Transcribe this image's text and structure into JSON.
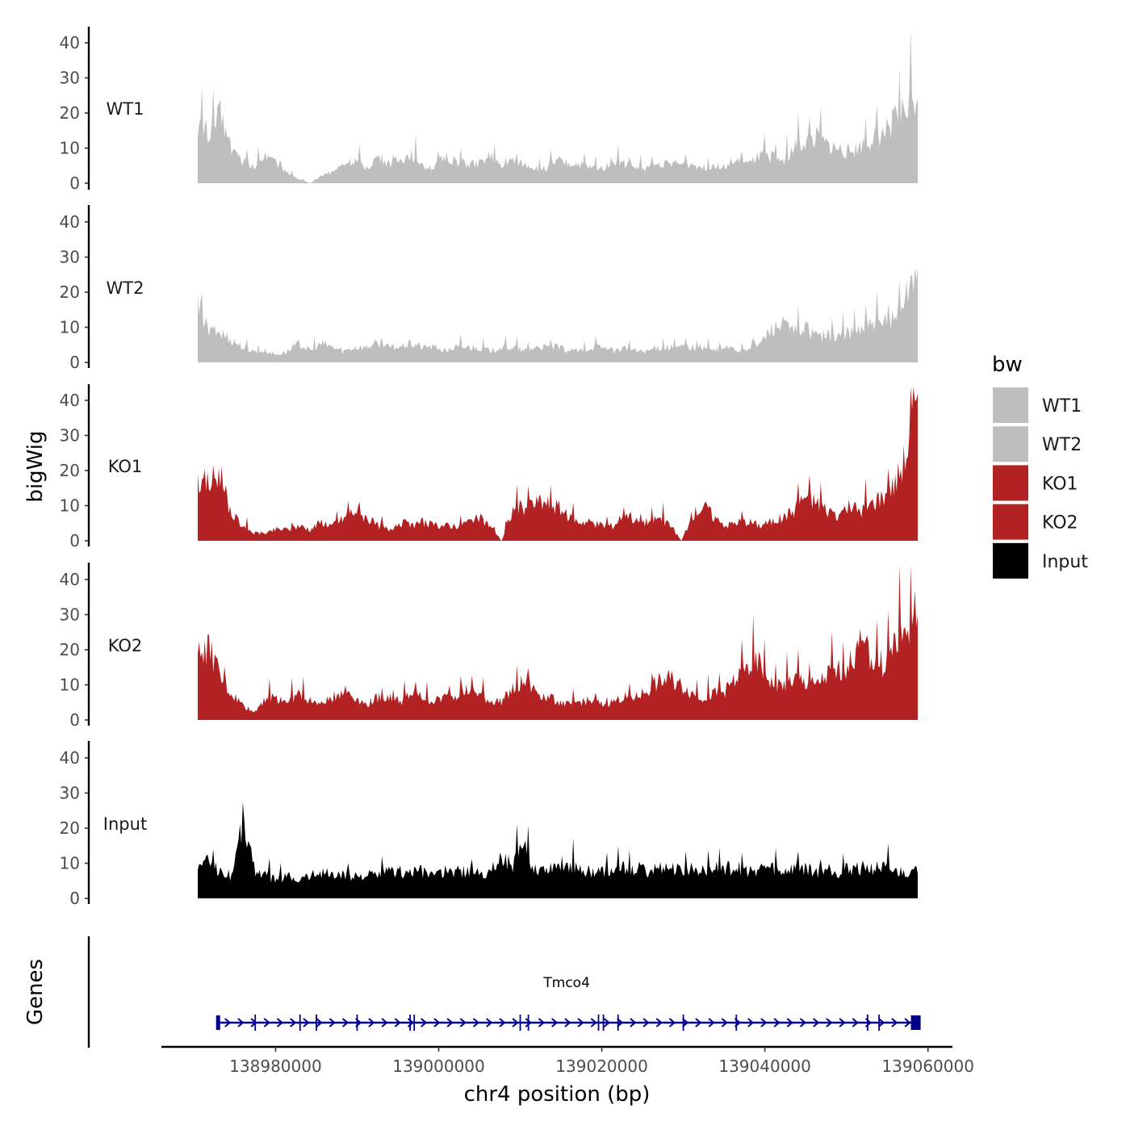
{
  "chart_data": {
    "type": "area",
    "title": "",
    "ylabel": "bigWig",
    "xlabel": "chr4 position (bp)",
    "x_range": [
      138971000,
      139059000
    ],
    "xlim": [
      138966000,
      139063000
    ],
    "ylim": [
      0,
      45
    ],
    "y_ticks": [
      "0",
      "10",
      "20",
      "30",
      "40"
    ],
    "x_ticks": [
      {
        "value": 138980000,
        "label": "138980000"
      },
      {
        "value": 139000000,
        "label": "139000000"
      },
      {
        "value": 139020000,
        "label": "139020000"
      },
      {
        "value": 139040000,
        "label": "139040000"
      },
      {
        "value": 139060000,
        "label": "139060000"
      }
    ],
    "legend": {
      "title": "bw",
      "position": "right",
      "entries": [
        {
          "label": "WT1",
          "color": "#bebebe"
        },
        {
          "label": "WT2",
          "color": "#bebebe"
        },
        {
          "label": "KO1",
          "color": "#b22222"
        },
        {
          "label": "KO2",
          "color": "#b22222"
        },
        {
          "label": "Input",
          "color": "#000000"
        }
      ]
    },
    "series": [
      {
        "name": "WT1",
        "color": "#bebebe",
        "values": [
          16,
          13,
          18,
          9,
          6,
          4,
          8,
          5,
          3,
          1,
          0,
          2,
          3,
          5,
          6,
          4,
          7,
          5,
          6,
          8,
          5,
          4,
          7,
          6,
          5,
          5,
          7,
          4,
          6,
          5,
          4,
          4,
          6,
          5,
          5,
          4,
          4,
          6,
          5,
          4,
          4,
          5,
          5,
          5,
          5,
          4,
          5,
          4,
          6,
          5,
          7,
          7,
          6,
          9,
          11,
          12,
          10,
          9,
          8,
          10,
          12,
          13,
          17,
          20,
          24
        ]
      },
      {
        "name": "WT2",
        "color": "#bebebe",
        "values": [
          15,
          8,
          8,
          6,
          4,
          3,
          3,
          2,
          3,
          5,
          3,
          5,
          4,
          3,
          4,
          4,
          5,
          4,
          4,
          5,
          4,
          4,
          3,
          4,
          4,
          4,
          3,
          4,
          4,
          3,
          4,
          4,
          4,
          3,
          3,
          4,
          4,
          3,
          4,
          3,
          3,
          4,
          4,
          4,
          4,
          4,
          3,
          4,
          3,
          4,
          5,
          9,
          10,
          8,
          9,
          7,
          7,
          7,
          8,
          9,
          10,
          10,
          12,
          18,
          27
        ]
      },
      {
        "name": "KO1",
        "color": "#b22222",
        "values": [
          16,
          15,
          18,
          7,
          4,
          2,
          2,
          3,
          3,
          4,
          3,
          5,
          4,
          6,
          8,
          6,
          4,
          3,
          5,
          4,
          5,
          4,
          4,
          4,
          5,
          6,
          4,
          0,
          8,
          9,
          10,
          10,
          9,
          6,
          5,
          5,
          4,
          4,
          8,
          5,
          5,
          6,
          4,
          0,
          7,
          9,
          6,
          4,
          5,
          5,
          4,
          5,
          6,
          8,
          12,
          10,
          8,
          7,
          9,
          8,
          10,
          12,
          15,
          23,
          42
        ]
      },
      {
        "name": "KO2",
        "color": "#b22222",
        "values": [
          17,
          19,
          11,
          7,
          4,
          2,
          6,
          6,
          5,
          7,
          5,
          4,
          6,
          8,
          6,
          4,
          6,
          6,
          5,
          7,
          6,
          5,
          6,
          7,
          8,
          7,
          5,
          5,
          8,
          10,
          8,
          6,
          5,
          4,
          5,
          5,
          4,
          5,
          6,
          6,
          8,
          10,
          11,
          9,
          7,
          6,
          7,
          8,
          11,
          14,
          15,
          10,
          9,
          11,
          10,
          9,
          12,
          13,
          15,
          20,
          16,
          15,
          20,
          24,
          30
        ]
      },
      {
        "name": "Input",
        "color": "#000000",
        "values": [
          8,
          10,
          7,
          6,
          21,
          8,
          6,
          5,
          6,
          5,
          6,
          7,
          6,
          6,
          6,
          6,
          6,
          7,
          7,
          7,
          7,
          6,
          7,
          7,
          7,
          7,
          7,
          11,
          9,
          13,
          8,
          8,
          9,
          9,
          8,
          7,
          7,
          7,
          8,
          8,
          7,
          8,
          8,
          7,
          8,
          8,
          8,
          8,
          8,
          7,
          8,
          8,
          7,
          8,
          8,
          7,
          8,
          7,
          8,
          8,
          8,
          8,
          7,
          7,
          7
        ]
      }
    ],
    "genes": {
      "track_label": "Genes",
      "name": "Tmco4",
      "start": 138973000,
      "end": 139059000,
      "strand": "+",
      "exon_positions": [
        138973000,
        138977500,
        138983000,
        138985000,
        138990000,
        138996500,
        138997000,
        139010000,
        139011000,
        139019600,
        139020200,
        139022000,
        139030000,
        139036500,
        139052600,
        139054000,
        139059000
      ]
    }
  }
}
